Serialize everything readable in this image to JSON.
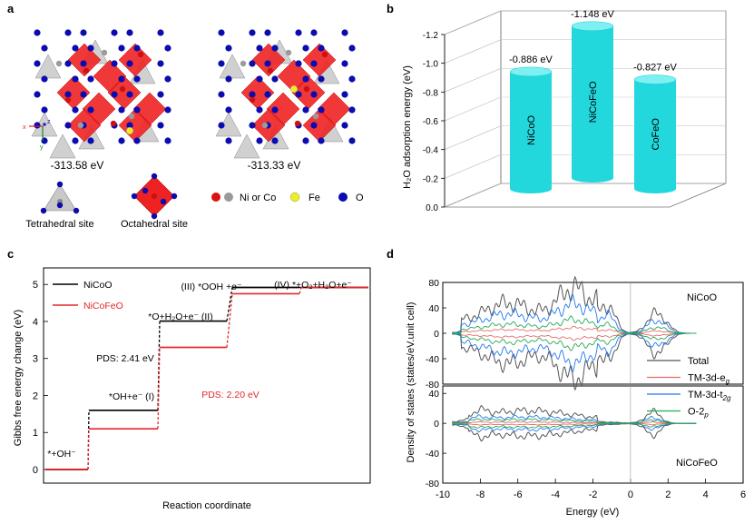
{
  "panel_labels": {
    "a": "a",
    "b": "b",
    "c": "c",
    "d": "d"
  },
  "colors": {
    "co_blue": "#0b0bb0",
    "octa_red": "#ee2222",
    "tetra_grey": "#c8c8c8",
    "cyan": "#22d8dd",
    "nicoo": "#000000",
    "nicofeo": "#e4262a",
    "total": "#555555",
    "eg": "#e86a6a",
    "t2g": "#2277ee",
    "o2p": "#22aa55"
  },
  "panel_a": {
    "energy_left": "-313.58 eV",
    "energy_right": "-313.33 eV",
    "tetrahedral_label": "Tetrahedral site",
    "octahedral_label": "Octahedral site",
    "legend_ni_co": "Ni or Co",
    "legend_fe": "Fe",
    "legend_o": "O",
    "axis_x": "x",
    "axis_y": "y",
    "axis_z": "z"
  },
  "chart_data": [
    {
      "id": "b",
      "type": "bar",
      "variant": "3d-cylinder",
      "ylabel": "H₂O adsorption energy (eV)",
      "yticks": [
        "-1.2",
        "-1.0",
        "-0.8",
        "-0.6",
        "-0.4",
        "-0.2",
        "0.0"
      ],
      "ylim": [
        0,
        -1.2
      ],
      "categories": [
        "NiCoO",
        "NiCoFeO",
        "CoFeO"
      ],
      "values": [
        -0.886,
        -1.148,
        -0.827
      ],
      "value_labels": [
        "-0.886 eV",
        "-1.148 eV",
        "-0.827 eV"
      ]
    },
    {
      "id": "c",
      "type": "line",
      "variant": "free-energy-step",
      "ylabel": "Gibbs free energy change (eV)",
      "xlabel": "Reaction coordinate",
      "yticks": [
        "0",
        "1",
        "2",
        "3",
        "4",
        "5"
      ],
      "ylim": [
        0,
        5.3
      ],
      "series": [
        {
          "name": "NiCoO",
          "values": [
            0,
            1.6,
            4.01,
            4.92,
            4.92
          ]
        },
        {
          "name": "NiCoFeO",
          "values": [
            0,
            1.1,
            3.3,
            4.75,
            4.92
          ]
        }
      ],
      "step_labels": [
        "*+OH⁻",
        "*OH+e⁻  (I)",
        "*O+H₂O+e⁻  (II)",
        "(III)  *OOH +e⁻",
        "(IV)  *+O₂+H₂O+e⁻"
      ],
      "annotations": [
        "PDS: 2.41 eV",
        "PDS: 2.20 eV"
      ]
    },
    {
      "id": "d",
      "type": "line",
      "variant": "density-of-states",
      "ylabel": "Density of states (states/eV.unit cell)",
      "xlabel": "Energy (eV)",
      "xticks": [
        "-10",
        "-8",
        "-6",
        "-4",
        "-2",
        "0",
        "2",
        "4",
        "6"
      ],
      "xlim": [
        -10,
        6
      ],
      "yticks_top": [
        "80",
        "40",
        "0",
        "-40",
        "-80"
      ],
      "yticks_bottom": [
        "40",
        "0",
        "-40",
        "-80"
      ],
      "ylim": [
        -80,
        80
      ],
      "series": [
        "Total",
        "TM-3d-eg",
        "TM-3d-t2g",
        "O-2p"
      ],
      "legend": [
        {
          "main": "Total",
          "sub": ""
        },
        {
          "main": "TM-3d-e",
          "sub": "g"
        },
        {
          "main": "TM-3d-t",
          "sub": "2g"
        },
        {
          "main": "O-2",
          "sub": "p"
        }
      ],
      "systems": [
        "NiCoO",
        "NiCoFeO"
      ]
    }
  ]
}
